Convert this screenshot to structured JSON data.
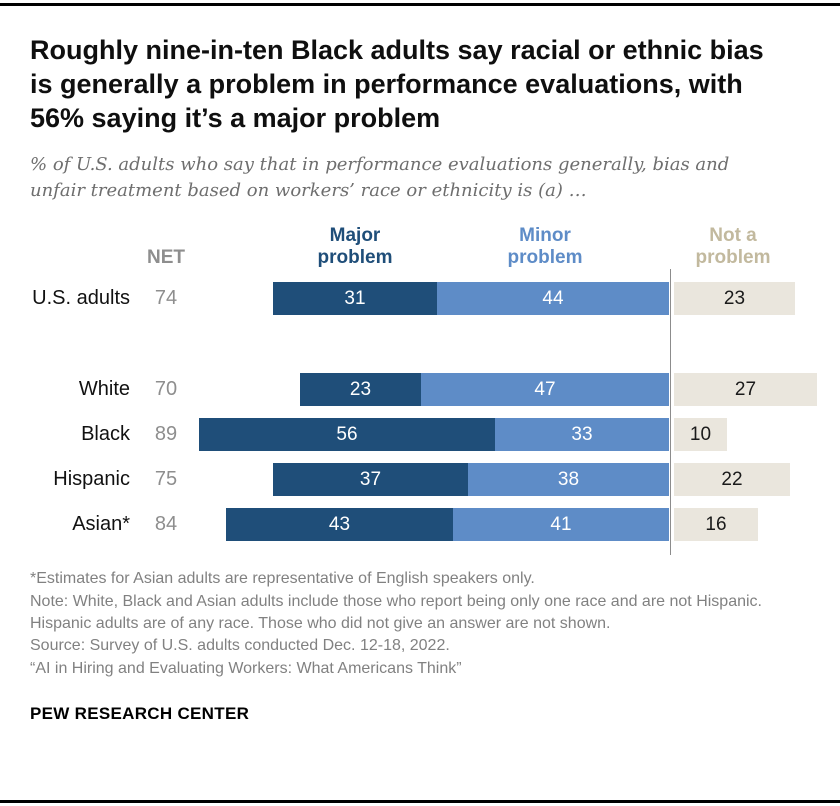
{
  "title": "Roughly nine-in-ten Black adults say racial or ethnic bias is generally a problem in performance evaluations, with 56% saying it’s a major problem",
  "subtitle": "% of U.S. adults who say that in performance evaluations generally, bias and unfair treatment based on workers’ race or ethnicity is (a) …",
  "chart_data": {
    "type": "bar",
    "stacked": true,
    "orientation": "horizontal",
    "net_label": "NET",
    "categories": [
      "U.S. adults",
      "White",
      "Black",
      "Hispanic",
      "Asian*"
    ],
    "net": [
      74,
      70,
      89,
      75,
      84
    ],
    "series": [
      {
        "name": "Major problem",
        "values": [
          31,
          23,
          56,
          37,
          43
        ]
      },
      {
        "name": "Minor problem",
        "values": [
          44,
          47,
          33,
          38,
          41
        ]
      },
      {
        "name": "Not a problem",
        "values": [
          23,
          27,
          10,
          22,
          16
        ]
      }
    ],
    "xlim": [
      0,
      100
    ],
    "legend_position": "top",
    "grid": false,
    "colors": {
      "major": "#1f4e79",
      "minor": "#5e8cc7",
      "not_bar": "#eae6dd",
      "not_header": "#c2b99e",
      "net": "#8e8e8e",
      "divider": "#8c8c8c"
    }
  },
  "footnotes": [
    "*Estimates for Asian adults are representative of English speakers only.",
    "Note: White, Black and Asian adults include those who report being only one race and are not Hispanic. Hispanic adults are of any race. Those who did not give an answer are not shown.",
    "Source: Survey of U.S. adults conducted Dec. 12-18, 2022.",
    "“AI in Hiring and Evaluating Workers: What Americans Think”"
  ],
  "brand": "PEW RESEARCH CENTER"
}
